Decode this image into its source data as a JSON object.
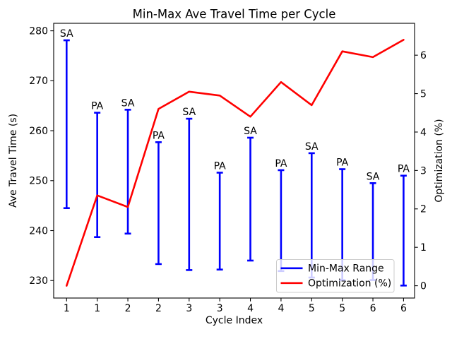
{
  "chart_data": {
    "type": "line",
    "subtype": "errorbar-with-secondary-line",
    "title": "Min-Max Ave Travel Time per Cycle",
    "xlabel": "Cycle Index",
    "ylabel_left": "Ave Travel Time (s)",
    "ylabel_right": "Optimization (%)",
    "x_tick_labels": [
      "1",
      "1",
      "2",
      "2",
      "3",
      "3",
      "4",
      "4",
      "5",
      "5",
      "6",
      "6"
    ],
    "left_axis": {
      "ticks": [
        230,
        240,
        250,
        260,
        270,
        280
      ],
      "range": [
        226.5,
        281.5
      ]
    },
    "right_axis": {
      "ticks": [
        0,
        1,
        2,
        3,
        4,
        5,
        6
      ],
      "range": [
        -0.32,
        6.83
      ]
    },
    "grid": false,
    "series": [
      {
        "name": "Min-Max Range",
        "kind": "errorbar",
        "color": "#0000ff",
        "axis": "left",
        "points": [
          {
            "label": "SA",
            "min": 244.5,
            "max": 278.1
          },
          {
            "label": "PA",
            "min": 238.7,
            "max": 263.6
          },
          {
            "label": "SA",
            "min": 239.4,
            "max": 264.2
          },
          {
            "label": "PA",
            "min": 233.3,
            "max": 257.7
          },
          {
            "label": "SA",
            "min": 232.1,
            "max": 262.4
          },
          {
            "label": "PA",
            "min": 232.2,
            "max": 251.6
          },
          {
            "label": "SA",
            "min": 234.0,
            "max": 258.6
          },
          {
            "label": "PA",
            "min": 231.9,
            "max": 252.1
          },
          {
            "label": "SA",
            "min": 230.6,
            "max": 255.5
          },
          {
            "label": "PA",
            "min": 230.1,
            "max": 252.3
          },
          {
            "label": "SA",
            "min": 230.1,
            "max": 249.5
          },
          {
            "label": "PA",
            "min": 229.0,
            "max": 251.0
          }
        ]
      },
      {
        "name": "Optimization (%)",
        "kind": "line",
        "color": "#ff0000",
        "axis": "right",
        "values": [
          0.0,
          2.35,
          2.05,
          4.6,
          5.05,
          4.95,
          4.4,
          5.3,
          4.7,
          6.1,
          5.95,
          6.4
        ]
      }
    ],
    "legend": {
      "position": "lower-right",
      "entries": [
        {
          "label": "Min-Max Range",
          "color": "#0000ff"
        },
        {
          "label": "Optimization (%)",
          "color": "#ff0000"
        }
      ]
    }
  }
}
